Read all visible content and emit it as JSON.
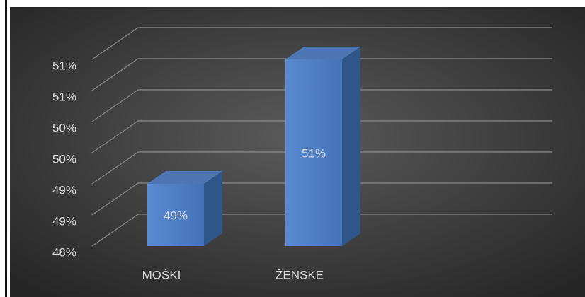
{
  "chart_data": {
    "type": "bar3d",
    "categories": [
      "MOŠKI",
      "ŽENSKE"
    ],
    "values": [
      49,
      51
    ],
    "value_labels": [
      "49%",
      "51%"
    ],
    "color": "#4a7cc4",
    "ylim": [
      48,
      51
    ],
    "yticks": [
      {
        "value": 48,
        "label": "48%"
      },
      {
        "value": 48.5,
        "label": "49%"
      },
      {
        "value": 49,
        "label": "49%"
      },
      {
        "value": 49.5,
        "label": "50%"
      },
      {
        "value": 50,
        "label": "50%"
      },
      {
        "value": 50.5,
        "label": "51%"
      },
      {
        "value": 51,
        "label": "51%"
      }
    ],
    "grid": true
  }
}
